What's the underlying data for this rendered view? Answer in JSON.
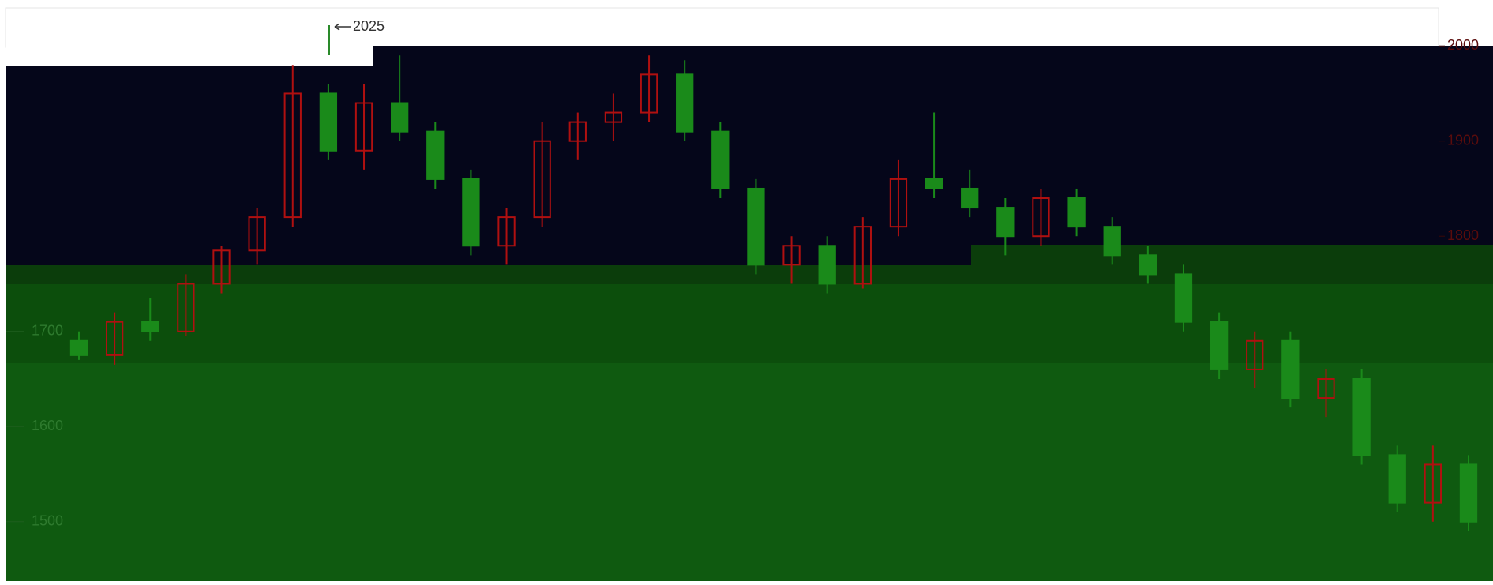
{
  "chart_data": {
    "type": "candlestick",
    "annotation": "2025",
    "open": [
      1690,
      1675,
      1710,
      1700,
      1750,
      1785,
      1820,
      1950,
      1890,
      1940,
      1910,
      1860,
      1790,
      1820,
      1900,
      1920,
      1930,
      1970,
      1910,
      1850,
      1770,
      1790,
      1750,
      1810,
      1860,
      1850,
      1830,
      1800,
      1840,
      1810,
      1780,
      1760,
      1710,
      1660,
      1690,
      1630,
      1650,
      1570,
      1520,
      1560
    ],
    "high": [
      1700,
      1720,
      1735,
      1760,
      1790,
      1830,
      1980,
      1960,
      1960,
      1990,
      1920,
      1870,
      1830,
      1920,
      1930,
      1950,
      1990,
      1985,
      1920,
      1860,
      1800,
      1800,
      1820,
      1880,
      1930,
      1870,
      1840,
      1850,
      1850,
      1820,
      1790,
      1770,
      1720,
      1700,
      1700,
      1660,
      1660,
      1580,
      1580,
      1570
    ],
    "low": [
      1670,
      1665,
      1690,
      1695,
      1740,
      1770,
      1810,
      1880,
      1870,
      1900,
      1850,
      1780,
      1770,
      1810,
      1880,
      1900,
      1920,
      1900,
      1840,
      1760,
      1750,
      1740,
      1745,
      1800,
      1840,
      1820,
      1780,
      1790,
      1800,
      1770,
      1750,
      1700,
      1650,
      1640,
      1620,
      1610,
      1560,
      1510,
      1500,
      1490
    ],
    "close": [
      1675,
      1710,
      1700,
      1750,
      1785,
      1820,
      1950,
      1890,
      1940,
      1910,
      1860,
      1790,
      1820,
      1900,
      1920,
      1930,
      1970,
      1910,
      1850,
      1770,
      1790,
      1750,
      1810,
      1860,
      1850,
      1830,
      1800,
      1840,
      1810,
      1780,
      1760,
      1710,
      1660,
      1690,
      1630,
      1650,
      1570,
      1520,
      1560,
      1500
    ],
    "up_color": "#b01010",
    "down_color": "#1a8a1a",
    "ylim": [
      1450,
      2040
    ],
    "yticks": [
      2000,
      1900,
      1800,
      1700,
      1600,
      1500
    ]
  }
}
